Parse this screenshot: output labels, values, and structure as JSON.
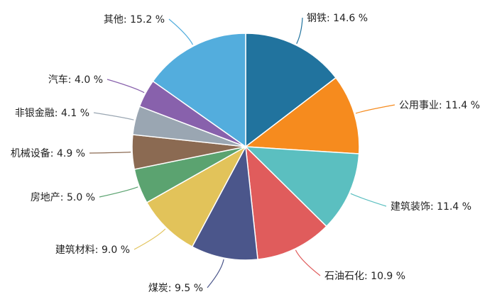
{
  "chart_data": {
    "type": "pie",
    "unit": "%",
    "slices": [
      {
        "label": "钢铁",
        "value": 14.6,
        "text": "钢铁: 14.6 %",
        "color": "#21739e"
      },
      {
        "label": "公用事业",
        "value": 11.4,
        "text": "公用事业: 11.4 %",
        "color": "#f68b1e"
      },
      {
        "label": "建筑装饰",
        "value": 11.4,
        "text": "建筑装饰: 11.4 %",
        "color": "#5bbfc0"
      },
      {
        "label": "石油石化",
        "value": 10.9,
        "text": "石油石化: 10.9 %",
        "color": "#e05c5c"
      },
      {
        "label": "煤炭",
        "value": 9.5,
        "text": "煤炭: 9.5 %",
        "color": "#4b568b"
      },
      {
        "label": "建筑材料",
        "value": 9.0,
        "text": "建筑材料: 9.0 %",
        "color": "#e2c35a"
      },
      {
        "label": "房地产",
        "value": 5.0,
        "text": "房地产: 5.0 %",
        "color": "#5ba370"
      },
      {
        "label": "机械设备",
        "value": 4.9,
        "text": "机械设备: 4.9 %",
        "color": "#8b6a52"
      },
      {
        "label": "非银金融",
        "value": 4.1,
        "text": "非银金融: 4.1 %",
        "color": "#9aa6b2"
      },
      {
        "label": "汽车",
        "value": 4.0,
        "text": "汽车: 4.0 %",
        "color": "#8861ac"
      },
      {
        "label": "其他",
        "value": 15.2,
        "text": "其他: 15.2 %",
        "color": "#53addd"
      }
    ]
  }
}
